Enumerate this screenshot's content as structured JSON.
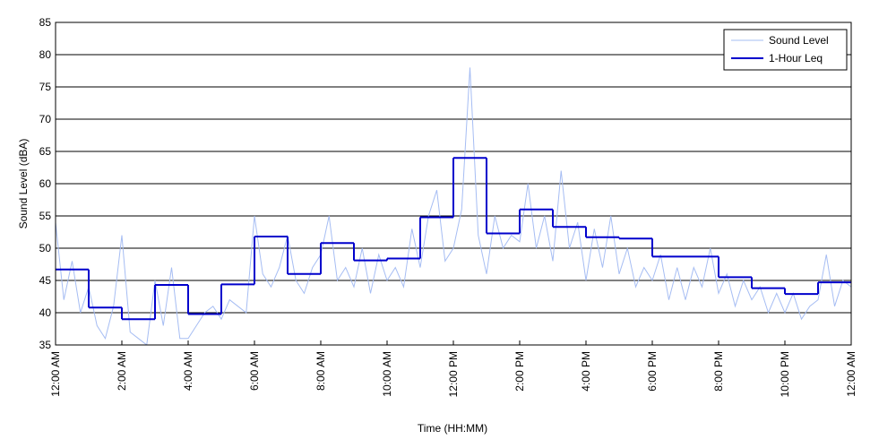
{
  "chart_data": {
    "type": "line",
    "xlabel": "Time (HH:MM)",
    "ylabel": "Sound Level (dBA)",
    "xlim": [
      0,
      24
    ],
    "ylim": [
      35,
      85
    ],
    "xticks": [
      {
        "value": 0,
        "label": "12:00 AM"
      },
      {
        "value": 2,
        "label": "2:00 AM"
      },
      {
        "value": 4,
        "label": "4:00 AM"
      },
      {
        "value": 6,
        "label": "6:00 AM"
      },
      {
        "value": 8,
        "label": "8:00 AM"
      },
      {
        "value": 10,
        "label": "10:00 AM"
      },
      {
        "value": 12,
        "label": "12:00 PM"
      },
      {
        "value": 14,
        "label": "2:00 PM"
      },
      {
        "value": 16,
        "label": "4:00 PM"
      },
      {
        "value": 18,
        "label": "6:00 PM"
      },
      {
        "value": 20,
        "label": "8:00 PM"
      },
      {
        "value": 22,
        "label": "10:00 PM"
      },
      {
        "value": 24,
        "label": "12:00 AM"
      }
    ],
    "yticks": [
      35,
      40,
      45,
      50,
      55,
      60,
      65,
      70,
      75,
      80,
      85
    ],
    "grid": true,
    "legend": "upper right",
    "series": [
      {
        "name": "Sound Level",
        "color": "#a6bdf3",
        "x": [
          0,
          0.25,
          0.5,
          0.75,
          1,
          1.25,
          1.5,
          1.75,
          2,
          2.25,
          2.5,
          2.75,
          3,
          3.25,
          3.5,
          3.75,
          4,
          4.25,
          4.5,
          4.75,
          5,
          5.25,
          5.5,
          5.75,
          6,
          6.25,
          6.5,
          6.75,
          7,
          7.25,
          7.5,
          7.75,
          8,
          8.25,
          8.5,
          8.75,
          9,
          9.25,
          9.5,
          9.75,
          10,
          10.25,
          10.5,
          10.75,
          11,
          11.25,
          11.5,
          11.75,
          12,
          12.25,
          12.5,
          12.75,
          13,
          13.25,
          13.5,
          13.75,
          14,
          14.25,
          14.5,
          14.75,
          15,
          15.25,
          15.5,
          15.75,
          16,
          16.25,
          16.5,
          16.75,
          17,
          17.25,
          17.5,
          17.75,
          18,
          18.25,
          18.5,
          18.75,
          19,
          19.25,
          19.5,
          19.75,
          20,
          20.25,
          20.5,
          20.75,
          21,
          21.25,
          21.5,
          21.75,
          22,
          22.25,
          22.5,
          22.75,
          23,
          23.25,
          23.5,
          23.75,
          24
        ],
        "values": [
          54,
          42,
          48,
          40,
          44,
          38,
          36,
          41,
          52,
          37,
          36,
          35,
          45,
          38,
          47,
          36,
          36,
          38,
          40,
          41,
          39,
          42,
          41,
          40,
          55,
          46,
          44,
          47,
          52,
          45,
          43,
          47,
          49,
          55,
          45,
          47,
          44,
          50,
          43,
          49,
          45,
          47,
          44,
          53,
          47,
          55,
          59,
          48,
          50,
          56,
          78,
          52,
          46,
          55,
          50,
          52,
          51,
          60,
          50,
          55,
          48,
          62,
          50,
          54,
          45,
          53,
          47,
          55,
          46,
          50,
          44,
          47,
          45,
          49,
          42,
          47,
          42,
          47,
          44,
          50,
          43,
          46,
          41,
          45,
          42,
          44,
          40,
          43,
          40,
          43,
          39,
          41,
          42,
          49,
          41,
          45,
          44
        ]
      },
      {
        "name": "1-Hour Leq",
        "color": "#0000cc",
        "step": "post",
        "x": [
          0,
          1,
          2,
          3,
          4,
          5,
          6,
          7,
          8,
          9,
          10,
          11,
          12,
          13,
          14,
          15,
          16,
          17,
          18,
          19,
          20,
          21,
          22,
          23
        ],
        "values": [
          46.7,
          40.8,
          39.0,
          44.3,
          39.8,
          44.4,
          51.8,
          46.0,
          50.8,
          48.1,
          48.4,
          54.8,
          64.0,
          52.3,
          56.0,
          53.3,
          51.7,
          51.5,
          48.7,
          48.7,
          45.5,
          43.8,
          42.9,
          44.7
        ]
      }
    ]
  }
}
